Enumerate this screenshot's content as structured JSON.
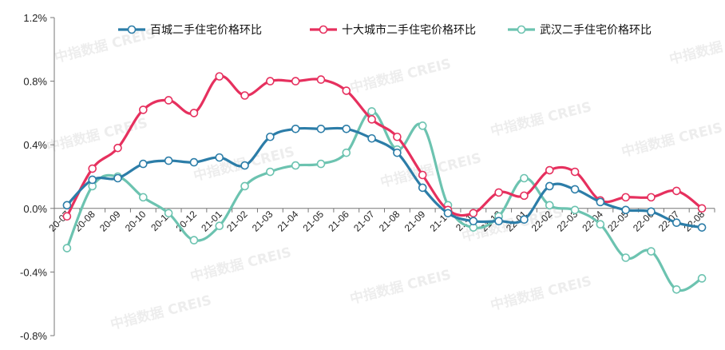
{
  "chart_data": {
    "type": "line",
    "title": "",
    "xlabel": "",
    "ylabel": "",
    "ylim": [
      -0.8,
      1.2
    ],
    "yticks": [
      -0.8,
      -0.4,
      0.0,
      0.4,
      0.8,
      1.2
    ],
    "ytick_labels": [
      "-0.8%",
      "-0.4%",
      "0.0%",
      "0.4%",
      "0.8%",
      "1.2%"
    ],
    "unit": "%",
    "grid": false,
    "legend_position": "top",
    "x": [
      "20-07",
      "20-08",
      "20-09",
      "20-10",
      "20-11",
      "20-12",
      "21-01",
      "21-02",
      "21-03",
      "21-04",
      "21-05",
      "21-06",
      "21-07",
      "21-08",
      "21-09",
      "21-10",
      "21-11",
      "21-12",
      "22-01",
      "22-02",
      "22-03",
      "22-04",
      "22-05",
      "22-06",
      "22-07",
      "22-08"
    ],
    "series": [
      {
        "name": "百城二手住宅价格环比",
        "color": "#2c7da8",
        "values": [
          0.02,
          0.18,
          0.19,
          0.28,
          0.3,
          0.29,
          0.32,
          0.27,
          0.45,
          0.5,
          0.5,
          0.5,
          0.44,
          0.35,
          0.13,
          -0.03,
          -0.08,
          -0.08,
          -0.07,
          0.14,
          0.12,
          0.04,
          -0.01,
          -0.02,
          -0.09,
          -0.12
        ]
      },
      {
        "name": "十大城市二手住宅价格环比",
        "color": "#e6305e",
        "values": [
          -0.05,
          0.25,
          0.38,
          0.62,
          0.68,
          0.6,
          0.83,
          0.71,
          0.8,
          0.8,
          0.81,
          0.74,
          0.56,
          0.45,
          0.21,
          -0.01,
          -0.03,
          0.1,
          0.08,
          0.24,
          0.23,
          0.05,
          0.07,
          0.07,
          0.11,
          0.0
        ]
      },
      {
        "name": "武汉二手住宅价格环比",
        "color": "#6cc3b0",
        "values": [
          -0.25,
          0.14,
          0.2,
          0.07,
          -0.03,
          -0.2,
          -0.11,
          0.14,
          0.23,
          0.27,
          0.28,
          0.35,
          0.61,
          0.37,
          0.52,
          0.02,
          -0.12,
          -0.05,
          0.19,
          0.02,
          -0.01,
          -0.1,
          -0.31,
          -0.27,
          -0.51,
          -0.44
        ]
      }
    ]
  },
  "watermark": {
    "text": "中指数据 CREIS"
  }
}
